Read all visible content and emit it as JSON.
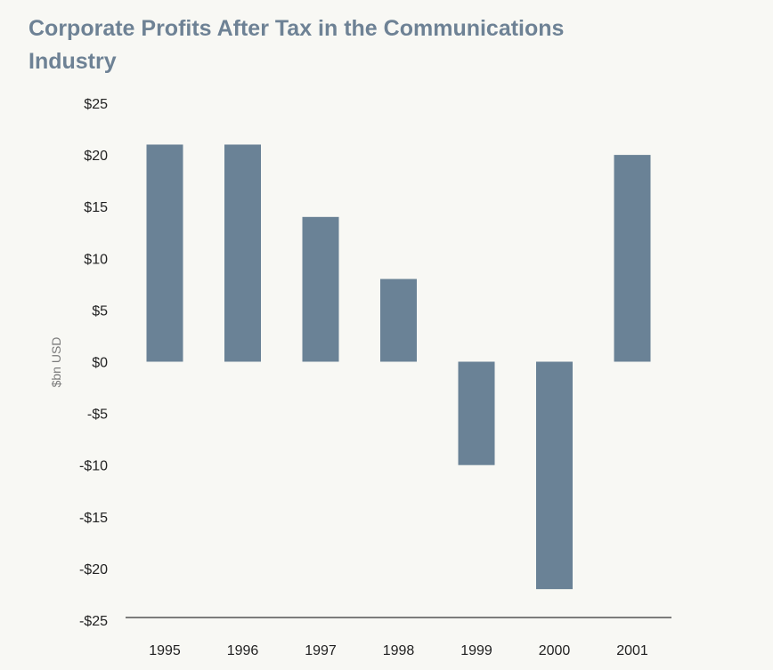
{
  "colors": {
    "background": "#f8f8f4",
    "title": "#6e8295",
    "bar": "#6a8296",
    "axis_line": "#333333"
  },
  "chart_data": {
    "type": "bar",
    "title": "Corporate Profits After Tax in the Communications Industry",
    "xlabel": "",
    "ylabel": "$bn USD",
    "categories": [
      "1995",
      "1996",
      "1997",
      "1998",
      "1999",
      "2000",
      "2001"
    ],
    "series": [
      {
        "name": "Corporate Profits After Tax",
        "values": [
          21,
          21,
          14,
          8,
          -10,
          -22,
          20
        ]
      }
    ],
    "ylim": [
      -25,
      25
    ],
    "yticks": [
      25,
      20,
      15,
      10,
      5,
      0,
      -5,
      -10,
      -15,
      -20,
      -25
    ],
    "ytick_labels": [
      "$25",
      "$20",
      "$15",
      "$10",
      "$5",
      "$0",
      "-$5",
      "-$10",
      "-$15",
      "-$20",
      "-$25"
    ],
    "grid": false,
    "legend": "none"
  }
}
